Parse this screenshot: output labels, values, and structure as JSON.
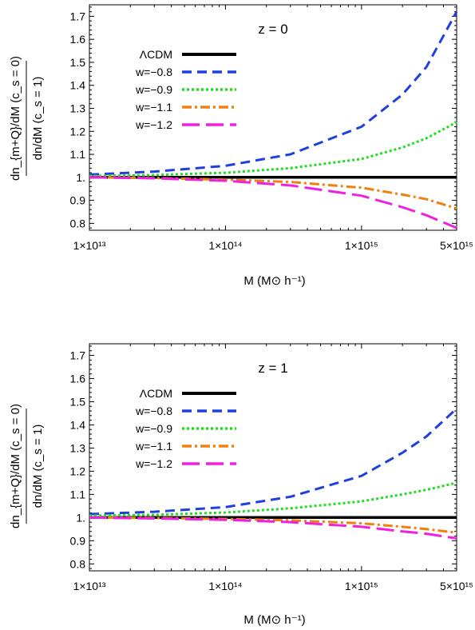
{
  "chart_data": [
    {
      "type": "line",
      "annotation": "z = 0",
      "xlabel": "M (M⊙ h⁻¹)",
      "ylabel_top": "dn_{m+Q}/dM (c_s = 0)",
      "ylabel_bottom": "dn/dM (c_s = 1)",
      "x_scale": "log",
      "xlim": [
        10000000000000.0,
        5000000000000000.0
      ],
      "ylim": [
        0.77,
        1.75
      ],
      "x_ticks": [
        {
          "value": 10000000000000.0,
          "label": "1×10¹³"
        },
        {
          "value": 100000000000000.0,
          "label": "1×10¹⁴"
        },
        {
          "value": 1000000000000000.0,
          "label": "1×10¹⁵"
        },
        {
          "value": 5000000000000000.0,
          "label": "5×10¹⁵"
        }
      ],
      "y_ticks": [
        {
          "value": 0.8,
          "label": "0.8"
        },
        {
          "value": 0.9,
          "label": "0.9"
        },
        {
          "value": 1.0,
          "label": "1."
        },
        {
          "value": 1.1,
          "label": "1.1"
        },
        {
          "value": 1.2,
          "label": "1.2"
        },
        {
          "value": 1.3,
          "label": "1.3"
        },
        {
          "value": 1.4,
          "label": "1.4"
        },
        {
          "value": 1.5,
          "label": "1.5"
        },
        {
          "value": 1.6,
          "label": "1.6"
        },
        {
          "value": 1.7,
          "label": "1.7"
        }
      ],
      "legend_position": "top-left",
      "series": [
        {
          "name": "ΛCDM",
          "color": "#000000",
          "dash": "solid",
          "x": [
            10000000000000.0,
            30000000000000.0,
            100000000000000.0,
            300000000000000.0,
            1000000000000000.0,
            2000000000000000.0,
            3000000000000000.0,
            5000000000000000.0
          ],
          "y": [
            1.0,
            1.0,
            1.0,
            1.0,
            1.0,
            1.0,
            1.0,
            1.0
          ]
        },
        {
          "name": "w=−0.8",
          "color": "#1f3fdf",
          "dash": "dash",
          "x": [
            10000000000000.0,
            30000000000000.0,
            100000000000000.0,
            300000000000000.0,
            1000000000000000.0,
            2000000000000000.0,
            3000000000000000.0,
            5000000000000000.0
          ],
          "y": [
            1.012,
            1.025,
            1.05,
            1.1,
            1.22,
            1.36,
            1.48,
            1.72
          ]
        },
        {
          "name": "w=−0.9",
          "color": "#22dd22",
          "dash": "dot",
          "x": [
            10000000000000.0,
            30000000000000.0,
            100000000000000.0,
            300000000000000.0,
            1000000000000000.0,
            2000000000000000.0,
            3000000000000000.0,
            5000000000000000.0
          ],
          "y": [
            1.006,
            1.01,
            1.02,
            1.04,
            1.08,
            1.13,
            1.17,
            1.24
          ]
        },
        {
          "name": "w=−1.1",
          "color": "#f08010",
          "dash": "dashdot",
          "x": [
            10000000000000.0,
            30000000000000.0,
            100000000000000.0,
            300000000000000.0,
            1000000000000000.0,
            2000000000000000.0,
            3000000000000000.0,
            5000000000000000.0
          ],
          "y": [
            1.0,
            0.997,
            0.99,
            0.98,
            0.955,
            0.925,
            0.905,
            0.865
          ]
        },
        {
          "name": "w=−1.2",
          "color": "#ee22dd",
          "dash": "longdash",
          "x": [
            10000000000000.0,
            30000000000000.0,
            100000000000000.0,
            300000000000000.0,
            1000000000000000.0,
            2000000000000000.0,
            3000000000000000.0,
            5000000000000000.0
          ],
          "y": [
            1.0,
            0.996,
            0.985,
            0.965,
            0.92,
            0.87,
            0.835,
            0.78
          ]
        }
      ]
    },
    {
      "type": "line",
      "annotation": "z = 1",
      "xlabel": "M (M⊙ h⁻¹)",
      "ylabel_top": "dn_{m+Q}/dM (c_s = 0)",
      "ylabel_bottom": "dn/dM (c_s = 1)",
      "x_scale": "log",
      "xlim": [
        10000000000000.0,
        5000000000000000.0
      ],
      "ylim": [
        0.77,
        1.75
      ],
      "x_ticks": [
        {
          "value": 10000000000000.0,
          "label": "1×10¹³"
        },
        {
          "value": 100000000000000.0,
          "label": "1×10¹⁴"
        },
        {
          "value": 1000000000000000.0,
          "label": "1×10¹⁵"
        },
        {
          "value": 5000000000000000.0,
          "label": "5×10¹⁵"
        }
      ],
      "y_ticks": [
        {
          "value": 0.8,
          "label": "0.8"
        },
        {
          "value": 0.9,
          "label": "0.9"
        },
        {
          "value": 1.0,
          "label": "1."
        },
        {
          "value": 1.1,
          "label": "1.1"
        },
        {
          "value": 1.2,
          "label": "1.2"
        },
        {
          "value": 1.3,
          "label": "1.3"
        },
        {
          "value": 1.4,
          "label": "1.4"
        },
        {
          "value": 1.5,
          "label": "1.5"
        },
        {
          "value": 1.6,
          "label": "1.6"
        },
        {
          "value": 1.7,
          "label": "1.7"
        }
      ],
      "legend_position": "top-left",
      "series": [
        {
          "name": "ΛCDM",
          "color": "#000000",
          "dash": "solid",
          "x": [
            10000000000000.0,
            30000000000000.0,
            100000000000000.0,
            300000000000000.0,
            1000000000000000.0,
            2000000000000000.0,
            3000000000000000.0,
            5000000000000000.0
          ],
          "y": [
            1.0,
            1.0,
            1.0,
            1.0,
            1.0,
            1.0,
            1.0,
            1.0
          ]
        },
        {
          "name": "w=−0.8",
          "color": "#1f3fdf",
          "dash": "dash",
          "x": [
            10000000000000.0,
            30000000000000.0,
            100000000000000.0,
            300000000000000.0,
            1000000000000000.0,
            2000000000000000.0,
            3000000000000000.0,
            5000000000000000.0
          ],
          "y": [
            1.015,
            1.025,
            1.045,
            1.09,
            1.18,
            1.28,
            1.35,
            1.47
          ]
        },
        {
          "name": "w=−0.9",
          "color": "#22dd22",
          "dash": "dot",
          "x": [
            10000000000000.0,
            30000000000000.0,
            100000000000000.0,
            300000000000000.0,
            1000000000000000.0,
            2000000000000000.0,
            3000000000000000.0,
            5000000000000000.0
          ],
          "y": [
            1.008,
            1.012,
            1.022,
            1.04,
            1.07,
            1.1,
            1.12,
            1.15
          ]
        },
        {
          "name": "w=−1.1",
          "color": "#f08010",
          "dash": "dashdot",
          "x": [
            10000000000000.0,
            30000000000000.0,
            100000000000000.0,
            300000000000000.0,
            1000000000000000.0,
            2000000000000000.0,
            3000000000000000.0,
            5000000000000000.0
          ],
          "y": [
            1.0,
            0.998,
            0.994,
            0.988,
            0.975,
            0.96,
            0.95,
            0.935
          ]
        },
        {
          "name": "w=−1.2",
          "color": "#ee22dd",
          "dash": "longdash",
          "x": [
            10000000000000.0,
            30000000000000.0,
            100000000000000.0,
            300000000000000.0,
            1000000000000000.0,
            2000000000000000.0,
            3000000000000000.0,
            5000000000000000.0
          ],
          "y": [
            1.0,
            0.996,
            0.99,
            0.98,
            0.96,
            0.94,
            0.93,
            0.91
          ]
        }
      ]
    }
  ]
}
